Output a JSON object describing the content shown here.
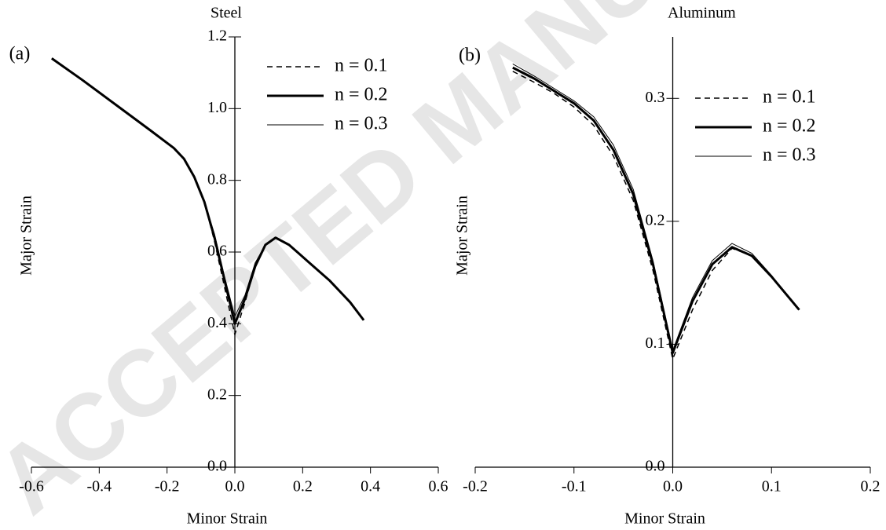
{
  "watermark": "ACCEPTED MANUSCRIPT",
  "chart_data": [
    {
      "type": "line",
      "title": "Steel",
      "panel": "(a)",
      "x_label": "Minor Strain",
      "y_label": "Major Strain",
      "xlim": [
        -0.6,
        0.6
      ],
      "ylim": [
        0,
        1.2
      ],
      "xticks": [
        -0.6,
        -0.4,
        -0.2,
        {
          "value": 0,
          "label": "0.0"
        },
        0.2,
        0.4,
        0.6
      ],
      "yticks": [
        {
          "value": 0,
          "label": "0.0"
        },
        0.2,
        0.4,
        0.6,
        0.8,
        {
          "value": 1,
          "label": "1.0"
        },
        1.2
      ],
      "x": [
        -0.54,
        -0.45,
        -0.35,
        -0.25,
        -0.18,
        -0.15,
        -0.12,
        -0.09,
        -0.06,
        -0.03,
        0,
        0.03,
        0.06,
        0.09,
        0.12,
        0.16,
        0.22,
        0.28,
        0.34,
        0.38
      ],
      "series": [
        {
          "name": "n = 0.1",
          "color": "#000000",
          "line_style": "dashed",
          "line_width": 1.5,
          "values": [
            1.14,
            1.08,
            1.01,
            0.94,
            0.89,
            0.86,
            0.81,
            0.74,
            0.63,
            0.5,
            0.37,
            0.46,
            0.56,
            0.62,
            0.64,
            0.62,
            0.57,
            0.52,
            0.46,
            0.41
          ]
        },
        {
          "name": "n = 0.2",
          "color": "#000000",
          "line_style": "solid",
          "line_width": 3,
          "values": [
            1.14,
            1.08,
            1.01,
            0.94,
            0.89,
            0.86,
            0.81,
            0.74,
            0.64,
            0.52,
            0.4,
            0.47,
            0.56,
            0.62,
            0.64,
            0.62,
            0.57,
            0.52,
            0.46,
            0.41
          ]
        },
        {
          "name": "n = 0.3",
          "color": "#000000",
          "line_style": "solid",
          "line_width": 1,
          "values": [
            1.14,
            1.08,
            1.01,
            0.94,
            0.89,
            0.86,
            0.81,
            0.74,
            0.65,
            0.53,
            0.42,
            0.48,
            0.57,
            0.62,
            0.64,
            0.62,
            0.57,
            0.52,
            0.46,
            0.41
          ]
        }
      ]
    },
    {
      "type": "line",
      "title": "Aluminum",
      "panel": "(b)",
      "x_label": "Minor Strain",
      "y_label": "Major Strain",
      "xlim": [
        -0.2,
        0.2
      ],
      "ylim": [
        0,
        0.35
      ],
      "xticks": [
        -0.2,
        -0.1,
        {
          "value": 0,
          "label": "0.0"
        },
        0.1,
        0.2
      ],
      "yticks": [
        {
          "value": 0,
          "label": "0.0"
        },
        0.1,
        0.2,
        0.3
      ],
      "x": [
        -0.162,
        -0.14,
        -0.12,
        -0.1,
        -0.08,
        -0.06,
        -0.04,
        -0.02,
        0,
        0.02,
        0.04,
        0.06,
        0.08,
        0.1,
        0.128
      ],
      "series": [
        {
          "name": "n = 0.1",
          "color": "#000000",
          "line_style": "dashed",
          "line_width": 1.5,
          "values": [
            0.322,
            0.313,
            0.304,
            0.293,
            0.278,
            0.253,
            0.217,
            0.16,
            0.088,
            0.128,
            0.16,
            0.178,
            0.172,
            0.155,
            0.128
          ]
        },
        {
          "name": "n = 0.2",
          "color": "#000000",
          "line_style": "solid",
          "line_width": 3,
          "values": [
            0.325,
            0.316,
            0.306,
            0.296,
            0.282,
            0.258,
            0.222,
            0.165,
            0.093,
            0.135,
            0.165,
            0.179,
            0.172,
            0.155,
            0.128
          ]
        },
        {
          "name": "n = 0.3",
          "color": "#000000",
          "line_style": "solid",
          "line_width": 1,
          "values": [
            0.328,
            0.318,
            0.308,
            0.298,
            0.285,
            0.262,
            0.226,
            0.168,
            0.095,
            0.138,
            0.168,
            0.182,
            0.174,
            0.156,
            0.128
          ]
        }
      ]
    }
  ]
}
